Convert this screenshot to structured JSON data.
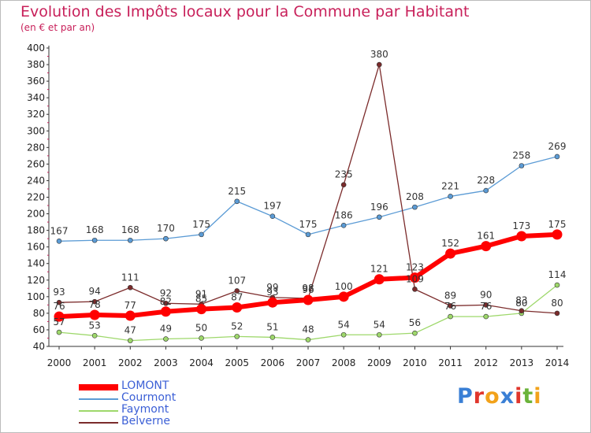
{
  "title": "Evolution des Impôts locaux pour la Commune par Habitant",
  "subtitle": "(en € et par an)",
  "logo": {
    "text": "Proxiti",
    "letter_colors": [
      "#3a7fd5",
      "#e0362c",
      "#f2a21a",
      "#3a7fd5",
      "#e0362c",
      "#6bb33a",
      "#f2a21a"
    ]
  },
  "chart_data": {
    "type": "line",
    "x": [
      2000,
      2001,
      2002,
      2003,
      2004,
      2005,
      2006,
      2007,
      2008,
      2009,
      2010,
      2011,
      2012,
      2013,
      2014
    ],
    "ylim": [
      40,
      400
    ],
    "ytick_step": 20,
    "grid": false,
    "legend": "bottom-left",
    "series": [
      {
        "name": "LOMONT",
        "color": "#ff0000",
        "values": [
          76,
          78,
          77,
          82,
          85,
          87,
          93,
          96,
          100,
          121,
          123,
          152,
          161,
          173,
          175
        ]
      },
      {
        "name": "Courmont",
        "color": "#5b9bd5",
        "values": [
          167,
          168,
          168,
          170,
          175,
          215,
          197,
          175,
          186,
          196,
          208,
          221,
          228,
          258,
          269
        ]
      },
      {
        "name": "Faymont",
        "color": "#9ed86b",
        "values": [
          57,
          53,
          47,
          49,
          50,
          52,
          51,
          48,
          54,
          54,
          56,
          76,
          76,
          80,
          114
        ]
      },
      {
        "name": "Belverne",
        "color": "#7b2b2b",
        "values": [
          93,
          94,
          111,
          92,
          91,
          107,
          99,
          98,
          235,
          380,
          109,
          89,
          90,
          83,
          80
        ]
      }
    ]
  }
}
